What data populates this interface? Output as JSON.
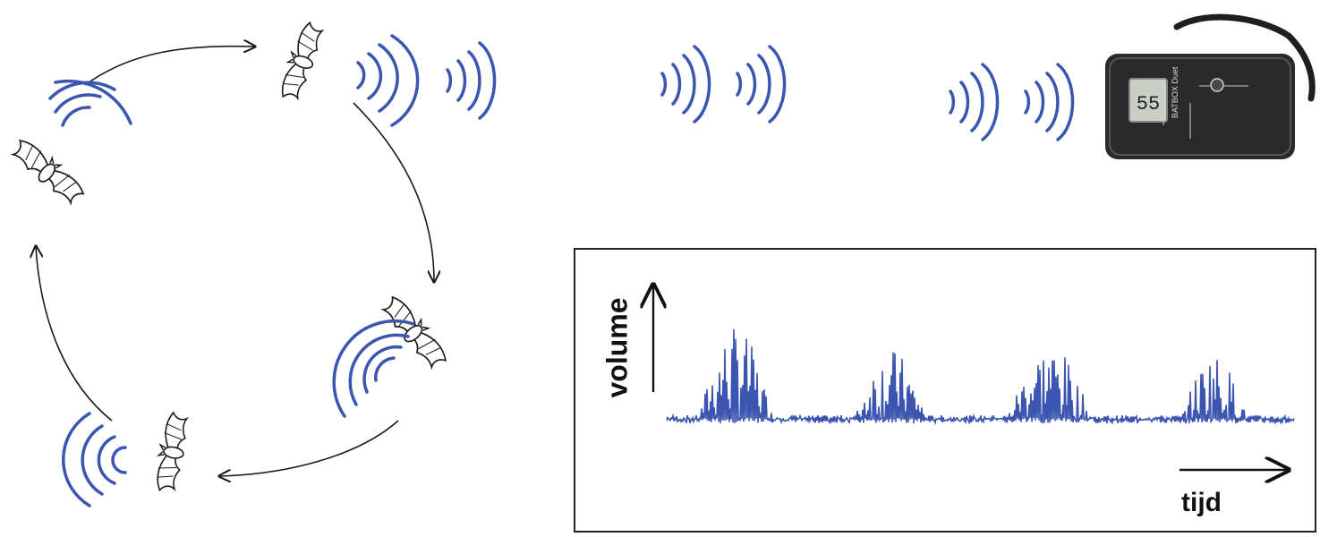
{
  "colors": {
    "wave": "#3b55b0",
    "ink": "#1a1a1a",
    "detector_body": "#2a2a2a",
    "lcd_bg": "#c9cfc4"
  },
  "icons": [
    "bat-icon",
    "sound-wave-icon",
    "bat-detector-icon",
    "cycle-arrow-icon"
  ],
  "detector": {
    "display_value": "55",
    "brand": "BATBOX Duet"
  },
  "plot": {
    "y_axis_label": "volume",
    "x_axis_label": "tijd"
  }
}
